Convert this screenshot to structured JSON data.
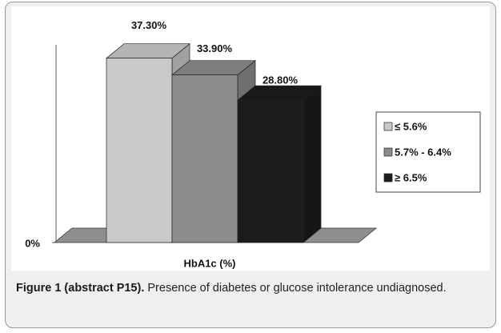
{
  "chart_data": {
    "type": "bar3d",
    "categories": [
      "HbA1c (%)"
    ],
    "xlabel": "HbA1c (%)",
    "series": [
      {
        "name": "≤ 5.6%",
        "color": "#c9c9c9",
        "values": [
          37.3
        ],
        "value_labels": [
          "37.30%"
        ]
      },
      {
        "name": "5.7% - 6.4%",
        "color": "#8c8c8c",
        "values": [
          33.9
        ],
        "value_labels": [
          "33.90%"
        ]
      },
      {
        "name": "≥ 6.5%",
        "color": "#1c1c1c",
        "values": [
          28.8
        ],
        "value_labels": [
          "28.80%"
        ]
      }
    ],
    "ylim": [
      0,
      40
    ],
    "yticks": [
      {
        "value": 0,
        "label": "0%"
      }
    ],
    "legend": "right"
  },
  "caption": {
    "label": "Figure 1 (abstract P15).",
    "text": "Presence of diabetes or glucose intolerance undiagnosed."
  }
}
